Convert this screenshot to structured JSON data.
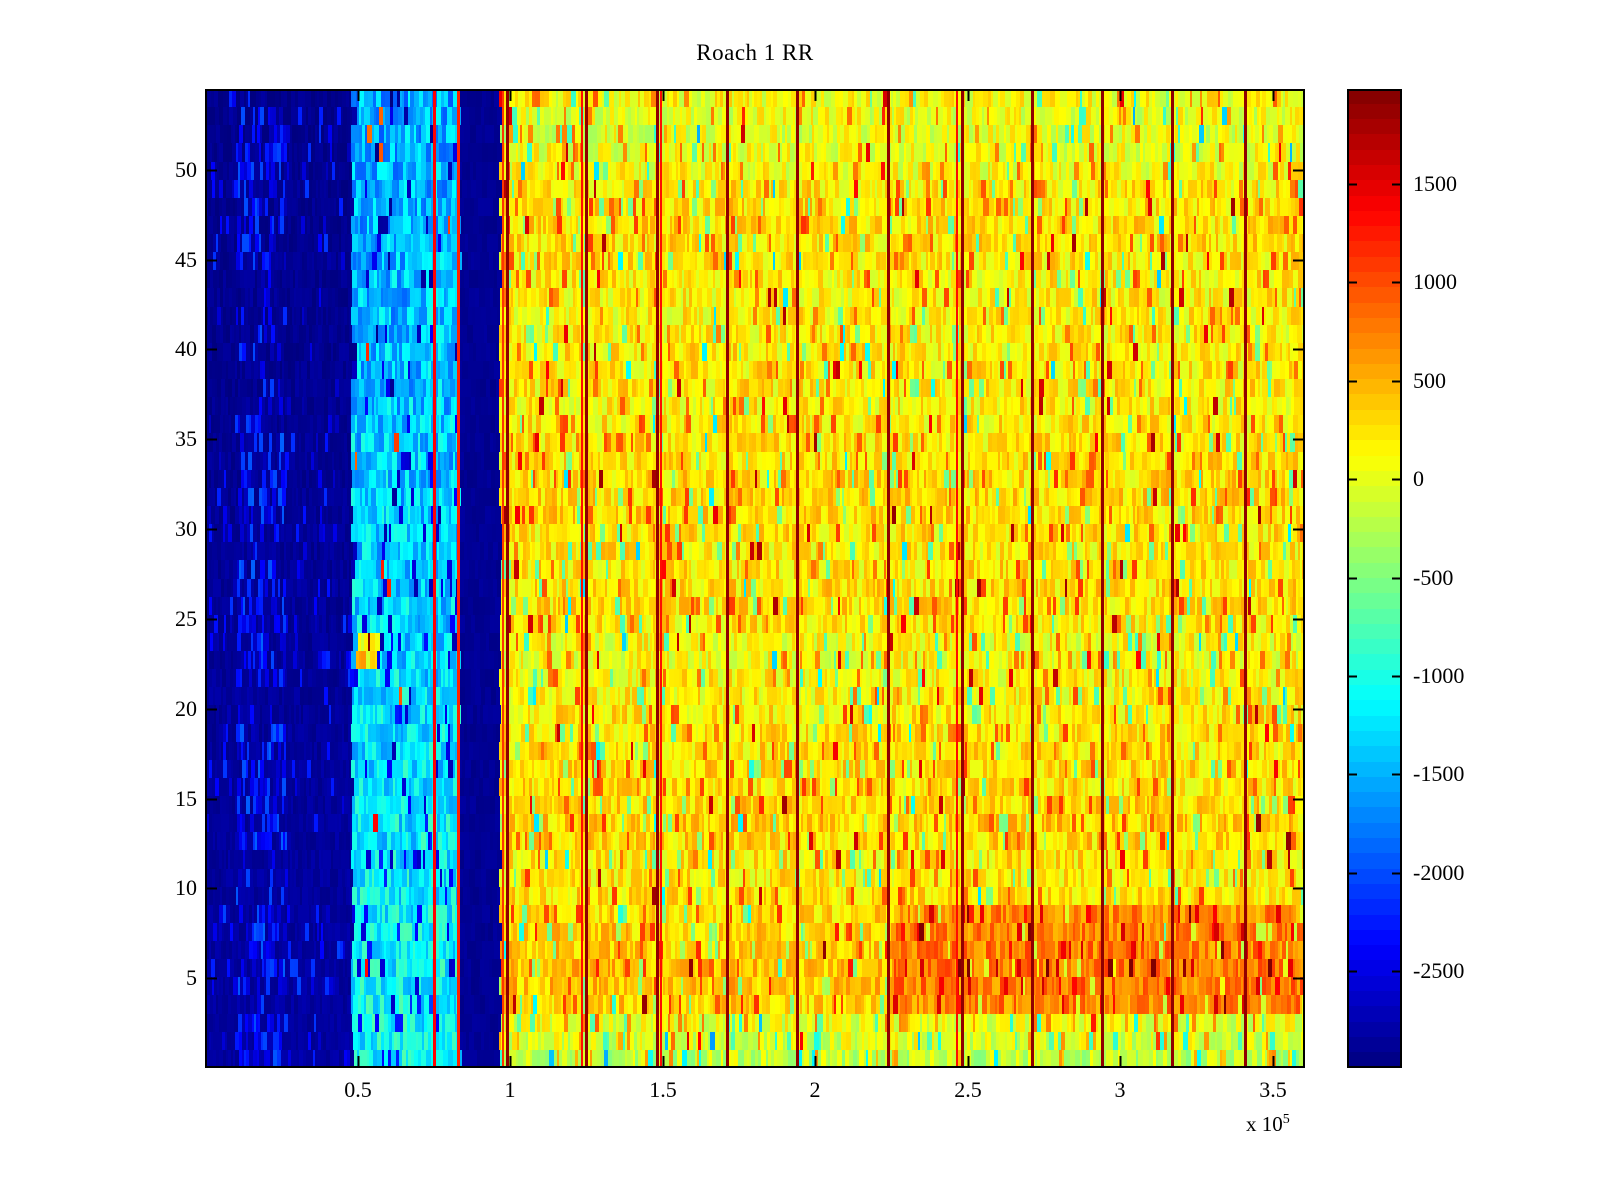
{
  "page": {
    "background": "#ffffff",
    "axis_color": "#000000"
  },
  "chart_data": {
    "type": "heatmap",
    "title": "Roach 1 RR",
    "rows": 54,
    "colormap": "jet",
    "x_axis": {
      "range": [
        0,
        3.605
      ],
      "unit_scale": 100000,
      "tick_values": [
        0.5,
        1,
        1.5,
        2,
        2.5,
        3,
        3.5
      ],
      "tick_labels": [
        "0.5",
        "1",
        "1.5",
        "2",
        "2.5",
        "3",
        "3.5"
      ],
      "exponent": {
        "mantissa": "x 10",
        "power": "5"
      }
    },
    "y_axis": {
      "range": [
        0,
        54.5
      ],
      "tick_values": [
        5,
        10,
        15,
        20,
        25,
        30,
        35,
        40,
        45,
        50
      ],
      "tick_labels": [
        "5",
        "10",
        "15",
        "20",
        "25",
        "30",
        "35",
        "40",
        "45",
        "50"
      ]
    },
    "colorbar": {
      "c_min": -2990,
      "c_max": 1980,
      "tick_values": [
        1500,
        1000,
        500,
        0,
        -500,
        -1000,
        -1500,
        -2000,
        -2500
      ],
      "tick_labels": [
        "1500",
        "1000",
        "500",
        "0",
        "-500",
        "-1000",
        "-1500",
        "-2000",
        "-2500"
      ]
    },
    "texture": {
      "seed": 1337,
      "row_offsets": [
        -320,
        -180,
        -120,
        200,
        260,
        260,
        230,
        210,
        160,
        110,
        60,
        70,
        160,
        190,
        160,
        110,
        130,
        110,
        90,
        60,
        20,
        0,
        -70,
        -40,
        60,
        110,
        110,
        90,
        60,
        90,
        130,
        150,
        130,
        110,
        90,
        60,
        40,
        60,
        40,
        60,
        20,
        0,
        20,
        40,
        60,
        100,
        120,
        110,
        60,
        -60,
        -110,
        -150,
        -120,
        -40
      ],
      "streak_bands": [
        [
          1,
          3
        ],
        [
          5,
          9
        ],
        [
          13,
          19
        ],
        [
          22,
          28
        ],
        [
          30,
          36
        ],
        [
          46,
          53
        ]
      ],
      "regions": [
        {
          "name": "left-dark",
          "kind": "streaky-dark",
          "x_min": 0.0,
          "x_max": 0.48,
          "base": -2880,
          "noise": 90,
          "streak_prob": 0.13,
          "streak_value": -2450,
          "streak_noise": 380,
          "row_scale": 0,
          "row_gradient": -2,
          "run_min": 2,
          "run_max": 4
        },
        {
          "name": "left-blue-column",
          "kind": "streaky-dark",
          "x_min": 0.1,
          "x_max": 0.265,
          "base": -2870,
          "noise": 100,
          "streak_prob": 0.52,
          "streak_value": -2300,
          "streak_noise": 420,
          "row_scale": 0,
          "row_gradient": -2,
          "run_min": 2,
          "run_max": 4
        },
        {
          "name": "cyan-band",
          "kind": "cyan",
          "x_min": 0.48,
          "x_max": 0.828,
          "base": -1320,
          "noise": 430,
          "dark_prob": 0.09,
          "dark_value": -2550,
          "hot_prob": 0.005,
          "hot_value": 900,
          "row_scale": 0,
          "row_gradient": -8,
          "run_min": 2,
          "run_max": 5
        },
        {
          "name": "dark-gap",
          "kind": "flat",
          "x_min": 0.828,
          "x_max": 0.963,
          "base": -2890,
          "noise": 60,
          "row_scale": 0,
          "row_gradient": 0,
          "run_min": 3,
          "run_max": 6
        },
        {
          "name": "warm-main",
          "kind": "warm",
          "x_min": 0.963,
          "x_max": 3.61,
          "base": 140,
          "noise": 330,
          "hot_prob": 0.07,
          "hot_value": 680,
          "red_prob": 0.013,
          "red_value": 1250,
          "cold_prob": 0.05,
          "cold_value": -520,
          "cyan_prob": 0.008,
          "cyan_value": -1080,
          "row_scale": 1,
          "row_gradient": 0,
          "run_min": 2,
          "run_max": 5
        }
      ],
      "blocks": [
        {
          "row_min": 4,
          "row_max": 9,
          "x_min": 2.25,
          "x_max": 3.61,
          "boost": 380
        },
        {
          "row_min": 23,
          "row_max": 24,
          "x_min": 0.49,
          "x_max": 0.56,
          "boost": 1500
        }
      ],
      "vlines_dark": [
        0.99,
        1.25,
        1.48,
        1.71,
        1.94,
        2.24,
        2.48,
        2.71,
        2.94,
        3.17,
        3.41
      ],
      "vline_dark_value": 1900,
      "vline_dark_width": 3,
      "vlines_red": [
        {
          "x": 0.752,
          "value": 1350,
          "width": 3
        },
        {
          "x": 0.828,
          "value": 1200,
          "width": 3
        },
        {
          "x": 0.978,
          "value": 1100,
          "width": 2
        },
        {
          "x": 1.235,
          "value": 1300,
          "width": 2
        },
        {
          "x": 1.495,
          "value": 1300,
          "width": 2
        },
        {
          "x": 2.465,
          "value": 1300,
          "width": 2
        }
      ]
    }
  }
}
